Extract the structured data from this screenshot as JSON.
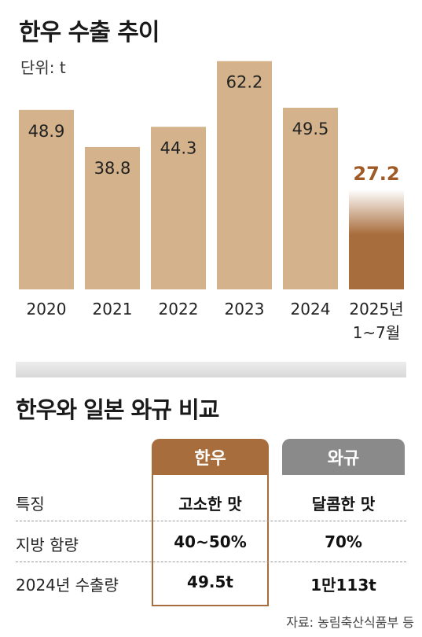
{
  "colors": {
    "bar": "#d4b28b",
    "highlight_bar": "#a86d3c",
    "highlight_label": "#a05a25",
    "hanwoo_accent": "#a86d3c",
    "wagyu_gray": "#8a8a8a"
  },
  "chart_data": {
    "type": "bar",
    "title": "한우 수출 추이",
    "unit_label": "단위: t",
    "categories": [
      "2020",
      "2021",
      "2022",
      "2023",
      "2024",
      "2025년\n1~7월"
    ],
    "values": [
      48.9,
      38.8,
      44.3,
      62.2,
      49.5,
      27.2
    ],
    "value_labels": [
      "48.9",
      "38.8",
      "44.3",
      "62.2",
      "49.5",
      "27.2"
    ],
    "highlight_index": 5,
    "ylim": [
      0,
      66
    ],
    "grid": false,
    "legend": "none"
  },
  "comparison": {
    "title": "한우와 일본 와규 비교",
    "columns": [
      "한우",
      "와규"
    ],
    "rows": [
      {
        "label": "특징",
        "values": [
          "고소한 맛",
          "달콤한 맛"
        ]
      },
      {
        "label": "지방 함량",
        "values": [
          "40~50%",
          "70%"
        ]
      },
      {
        "label": "2024년 수출량",
        "values": [
          "49.5t",
          "1만113t"
        ]
      }
    ]
  },
  "source": "자료: 농림축산식품부 등"
}
